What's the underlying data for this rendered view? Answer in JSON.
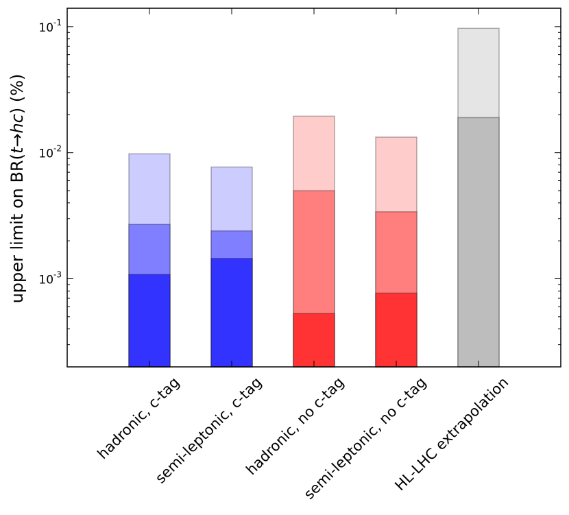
{
  "chart_data": {
    "type": "bar",
    "yscale": "log",
    "ylim": [
      0.0002,
      0.14
    ],
    "ylabel_prefix": "upper limit on BR(",
    "ylabel_math": "t→hc",
    "ylabel_suffix": ") (%)",
    "yticks": [
      {
        "value": 0.001,
        "base": "10",
        "exp": "-3"
      },
      {
        "value": 0.01,
        "base": "10",
        "exp": "-2"
      },
      {
        "value": 0.1,
        "base": "10",
        "exp": "-1"
      }
    ],
    "categories": [
      "hadronic, c-tag",
      "semi-leptonic, c-tag",
      "hadronic, no c-tag",
      "semi-leptonic, no c-tag",
      "HL-LHC extrapolation"
    ],
    "bars": [
      {
        "category": "hadronic, c-tag",
        "layers": [
          {
            "level": "light",
            "value": 0.0098,
            "color": "#ccccff"
          },
          {
            "level": "medium",
            "value": 0.0027,
            "color": "#7f7fff"
          },
          {
            "level": "dark",
            "value": 0.00108,
            "color": "#3333ff"
          }
        ]
      },
      {
        "category": "semi-leptonic, c-tag",
        "layers": [
          {
            "level": "light",
            "value": 0.0077,
            "color": "#ccccff"
          },
          {
            "level": "medium",
            "value": 0.0024,
            "color": "#7f7fff"
          },
          {
            "level": "dark",
            "value": 0.00145,
            "color": "#3333ff"
          }
        ]
      },
      {
        "category": "hadronic, no c-tag",
        "layers": [
          {
            "level": "light",
            "value": 0.0195,
            "color": "#ffcccc"
          },
          {
            "level": "medium",
            "value": 0.005,
            "color": "#ff7f7f"
          },
          {
            "level": "dark",
            "value": 0.00053,
            "color": "#ff3333"
          }
        ]
      },
      {
        "category": "semi-leptonic, no c-tag",
        "layers": [
          {
            "level": "light",
            "value": 0.0133,
            "color": "#ffcccc"
          },
          {
            "level": "medium",
            "value": 0.0034,
            "color": "#ff7f7f"
          },
          {
            "level": "dark",
            "value": 0.00077,
            "color": "#ff3333"
          }
        ]
      },
      {
        "category": "HL-LHC extrapolation",
        "layers": [
          {
            "level": "light",
            "value": 0.097,
            "color": "#e5e5e5"
          },
          {
            "level": "medium",
            "value": 0.019,
            "color": "#bdbdbd"
          }
        ]
      }
    ]
  }
}
